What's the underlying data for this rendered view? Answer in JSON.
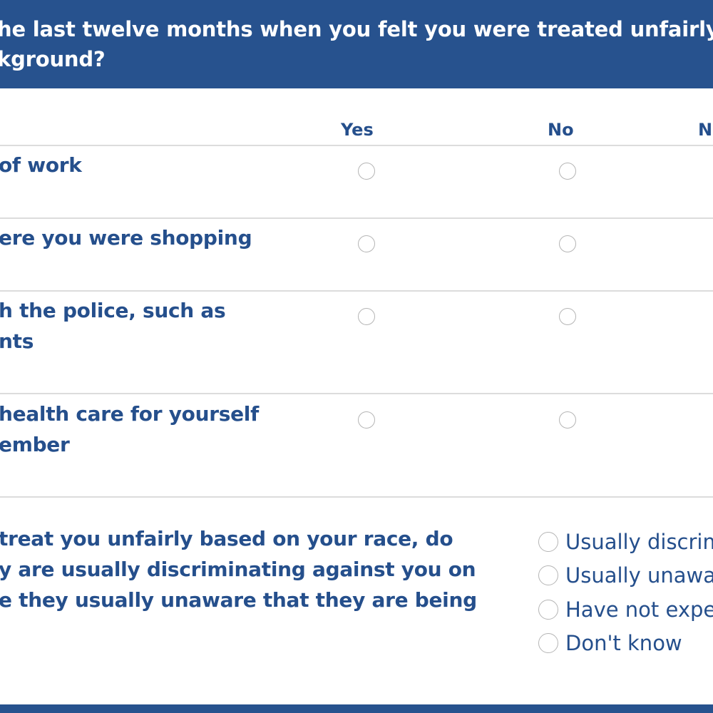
{
  "question1": {
    "header_line1": "he last twelve months when you felt you were treated unfairly in t",
    "header_line2": "kground?",
    "columns": [
      "Yes",
      "No",
      "N"
    ],
    "rows": [
      {
        "line1": "of work",
        "line2": ""
      },
      {
        "line1": "ere you were shopping",
        "line2": ""
      },
      {
        "line1": "h the police, such as",
        "line2": "nts"
      },
      {
        "line1": " health care for yourself",
        "line2": "ember"
      }
    ]
  },
  "question2": {
    "line1": "treat you unfairly based on your race, do",
    "line2": "y are usually discriminating against you on",
    "line3": "e they usually unaware that they are being",
    "options": [
      "Usually discrim",
      "Usually unawa",
      "Have not expe",
      "Don't know"
    ]
  },
  "colors": {
    "header_bg": "#27528e",
    "label_text": "#254f8c",
    "divider": "#dcdcdc"
  }
}
